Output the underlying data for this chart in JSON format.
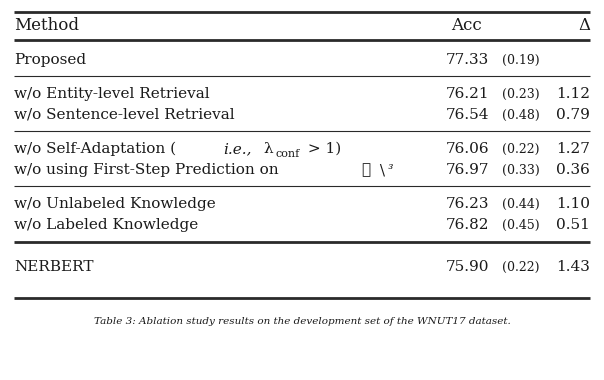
{
  "headers": [
    "Method",
    "Acc",
    "Δ"
  ],
  "rows": [
    {
      "method": "Proposed",
      "acc": "77.33",
      "std": "(0.19)",
      "delta": "",
      "group": "proposed"
    },
    {
      "method": "w/o Entity-level Retrieval",
      "acc": "76.21",
      "std": "(0.23)",
      "delta": "1.12",
      "group": "ablation"
    },
    {
      "method": "w/o Sentence-level Retrieval",
      "acc": "76.54",
      "std": "(0.48)",
      "delta": "0.79",
      "group": "ablation"
    },
    {
      "method": "w/o Self-Adaptation",
      "acc": "76.06",
      "std": "(0.22)",
      "delta": "1.27",
      "group": "ablation"
    },
    {
      "method": "w/o using First-Step Prediction on",
      "acc": "76.97",
      "std": "(0.33)",
      "delta": "0.36",
      "group": "ablation"
    },
    {
      "method": "w/o Unlabeled Knowledge",
      "acc": "76.23",
      "std": "(0.44)",
      "delta": "1.10",
      "group": "ablation"
    },
    {
      "method": "w/o Labeled Knowledge",
      "acc": "76.82",
      "std": "(0.45)",
      "delta": "0.51",
      "group": "ablation"
    },
    {
      "method": "NERBERT",
      "acc": "75.90",
      "std": "(0.22)",
      "delta": "1.43",
      "group": "nerbert"
    }
  ],
  "bg_color": "#ffffff",
  "text_color": "#1a1a1a",
  "line_color": "#2a2a2a",
  "figsize": [
    6.04,
    3.8
  ],
  "dpi": 100
}
